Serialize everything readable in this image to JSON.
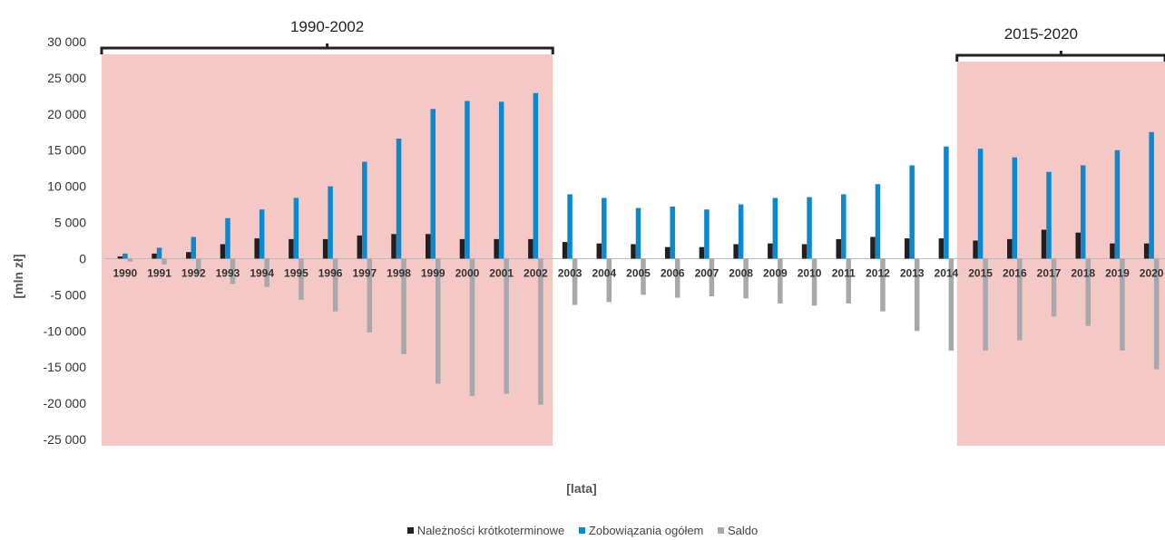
{
  "chart_data": {
    "type": "bar",
    "xlabel": "[lata]",
    "ylabel": "[mln zł]",
    "ylim": [
      -25000,
      30000
    ],
    "yticks": [
      30000,
      25000,
      20000,
      15000,
      10000,
      5000,
      0,
      -5000,
      -10000,
      -15000,
      -20000,
      -25000
    ],
    "ytick_labels": [
      "30 000",
      "25 000",
      "20 000",
      "15 000",
      "10 000",
      "5 000",
      "0",
      "-5 000",
      "-10 000",
      "-15 000",
      "-20 000",
      "-25 000"
    ],
    "grid": false,
    "legend_position": "bottom",
    "categories": [
      "1990",
      "1991",
      "1992",
      "1993",
      "1994",
      "1995",
      "1996",
      "1997",
      "1998",
      "1999",
      "2000",
      "2001",
      "2002",
      "2003",
      "2004",
      "2005",
      "2006",
      "2007",
      "2008",
      "2009",
      "2010",
      "2011",
      "2012",
      "2013",
      "2014",
      "2015",
      "2016",
      "2017",
      "2018",
      "2019",
      "2020"
    ],
    "series": [
      {
        "name": "Należności krótkoterminowe",
        "color": "#231f20",
        "values": [
          300,
          700,
          900,
          2000,
          2800,
          2700,
          2700,
          3200,
          3400,
          3400,
          2700,
          2700,
          2700,
          2300,
          2100,
          2000,
          1600,
          1600,
          2000,
          2100,
          2000,
          2700,
          3000,
          2800,
          2800,
          2500,
          2700,
          4000,
          3600,
          2100,
          2100
        ]
      },
      {
        "name": "Zobowiązania ogółem",
        "color": "#0a89cf",
        "values": [
          700,
          1500,
          3000,
          5600,
          6800,
          8400,
          10000,
          13400,
          16600,
          20700,
          21800,
          21700,
          22900,
          8900,
          8400,
          7000,
          7200,
          6800,
          7500,
          8400,
          8500,
          8900,
          10300,
          12900,
          15500,
          15200,
          14000,
          12000,
          12900,
          15000,
          17500
        ]
      },
      {
        "name": "Saldo",
        "color": "#a6a8ab",
        "values": [
          -400,
          -800,
          -2100,
          -3500,
          -3900,
          -5700,
          -7300,
          -10200,
          -13200,
          -17300,
          -19000,
          -18700,
          -20200,
          -6400,
          -6000,
          -5000,
          -5400,
          -5200,
          -5500,
          -6200,
          -6500,
          -6200,
          -7300,
          -10000,
          -12700,
          -12700,
          -11300,
          -8000,
          -9300,
          -12700,
          -15300
        ]
      }
    ],
    "highlights": [
      {
        "label": "1990-2002",
        "from": "1990",
        "to": "2002",
        "color": "#f4c9c5"
      },
      {
        "label": "2015-2020",
        "from": "2015",
        "to": "2020",
        "color": "#f4c9c5"
      }
    ]
  }
}
